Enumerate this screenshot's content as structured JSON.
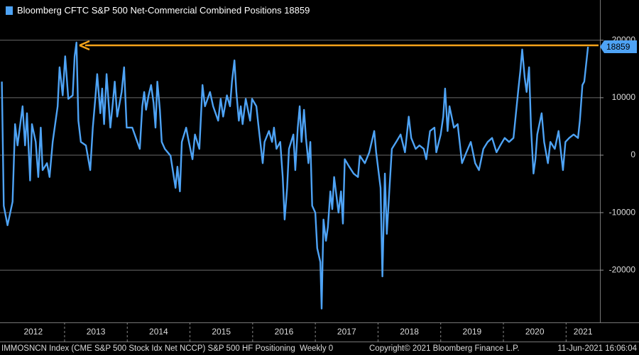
{
  "chart_data": {
    "type": "line",
    "ylim": [
      -29100,
      27000
    ],
    "yticks": [
      20000,
      10000,
      0,
      -10000,
      -20000
    ],
    "grid": true,
    "xlim": [
      2011.97,
      2021.54
    ],
    "xticks": [
      2012,
      2013,
      2014,
      2015,
      2016,
      2017,
      2018,
      2019,
      2020,
      2021
    ],
    "background": "#000000",
    "series": [
      {
        "name": "Bloomberg CFTC S&P 500 Net-Commercial Combined Positions",
        "color": "#4ea3f5",
        "x": [
          2012.0,
          2012.03,
          2012.09,
          2012.17,
          2012.21,
          2012.25,
          2012.33,
          2012.37,
          2012.4,
          2012.45,
          2012.48,
          2012.54,
          2012.58,
          2012.62,
          2012.65,
          2012.72,
          2012.76,
          2012.81,
          2012.89,
          2012.92,
          2012.97,
          2013.01,
          2013.06,
          2013.13,
          2013.16,
          2013.19,
          2013.22,
          2013.26,
          2013.34,
          2013.41,
          2013.45,
          2013.49,
          2013.52,
          2013.57,
          2013.6,
          2013.63,
          2013.67,
          2013.73,
          2013.77,
          2013.8,
          2013.84,
          2013.91,
          2013.95,
          2013.99,
          2014.08,
          2014.16,
          2014.2,
          2014.24,
          2014.27,
          2014.3,
          2014.34,
          2014.38,
          2014.42,
          2014.45,
          2014.48,
          2014.52,
          2014.55,
          2014.6,
          2014.69,
          2014.77,
          2014.8,
          2014.84,
          2014.87,
          2014.94,
          2014.97,
          2015.04,
          2015.08,
          2015.15,
          2015.2,
          2015.24,
          2015.32,
          2015.37,
          2015.45,
          2015.49,
          2015.53,
          2015.59,
          2015.64,
          2015.67,
          2015.71,
          2015.74,
          2015.78,
          2015.81,
          2015.84,
          2015.89,
          2015.96,
          2015.99,
          2016.06,
          2016.09,
          2016.16,
          2016.19,
          2016.26,
          2016.31,
          2016.34,
          2016.38,
          2016.44,
          2016.48,
          2016.51,
          2016.55,
          2016.58,
          2016.65,
          2016.68,
          2016.72,
          2016.75,
          2016.78,
          2016.82,
          2016.85,
          2016.89,
          2016.92,
          2016.95,
          2017.0,
          2017.03,
          2017.08,
          2017.1,
          2017.13,
          2017.17,
          2017.2,
          2017.24,
          2017.27,
          2017.3,
          2017.37,
          2017.41,
          2017.44,
          2017.47,
          2017.54,
          2017.61,
          2017.68,
          2017.71,
          2017.79,
          2017.86,
          2017.94,
          2017.97,
          2018.04,
          2018.07,
          2018.11,
          2018.14,
          2018.18,
          2018.22,
          2018.29,
          2018.36,
          2018.43,
          2018.49,
          2018.53,
          2018.6,
          2018.66,
          2018.73,
          2018.77,
          2018.83,
          2018.9,
          2018.93,
          2019.0,
          2019.04,
          2019.07,
          2019.11,
          2019.14,
          2019.21,
          2019.27,
          2019.34,
          2019.41,
          2019.48,
          2019.55,
          2019.61,
          2019.68,
          2019.75,
          2019.82,
          2019.89,
          2019.95,
          2020.02,
          2020.09,
          2020.16,
          2020.2,
          2020.24,
          2020.27,
          2020.3,
          2020.34,
          2020.37,
          2020.41,
          2020.44,
          2020.48,
          2020.51,
          2020.54,
          2020.61,
          2020.65,
          2020.71,
          2020.75,
          2020.82,
          2020.88,
          2020.95,
          2020.99,
          2021.05,
          2021.12,
          2021.19,
          2021.22,
          2021.26,
          2021.29,
          2021.35
        ],
        "values": [
          12800,
          -8800,
          -12200,
          -8100,
          5400,
          1700,
          8500,
          1700,
          7300,
          -4400,
          5400,
          2300,
          -3800,
          4800,
          -2600,
          -1400,
          -3800,
          2300,
          8500,
          15300,
          10400,
          17200,
          9800,
          10400,
          17200,
          19600,
          6000,
          2300,
          1700,
          -2600,
          4800,
          9800,
          14100,
          7300,
          11600,
          5400,
          14100,
          4800,
          9100,
          12800,
          6700,
          11000,
          15300,
          4800,
          4800,
          2300,
          1100,
          8500,
          11000,
          7900,
          10400,
          12200,
          9100,
          4800,
          12800,
          7900,
          2300,
          1100,
          -100,
          -5700,
          -2000,
          -6300,
          2300,
          4800,
          3000,
          -700,
          3600,
          1100,
          12200,
          8500,
          11000,
          8500,
          6000,
          9800,
          6700,
          10400,
          8500,
          12800,
          16500,
          11000,
          6000,
          8500,
          5400,
          9800,
          6000,
          9800,
          8500,
          5400,
          -1400,
          2300,
          4200,
          2300,
          4800,
          1100,
          2300,
          -3800,
          -11200,
          -5700,
          1100,
          3600,
          -2600,
          4800,
          8500,
          2300,
          7900,
          3000,
          -1400,
          2300,
          -8800,
          -10000,
          -16200,
          -18600,
          -26700,
          -11200,
          -14900,
          -12500,
          -6300,
          -9400,
          -3800,
          -10000,
          -6300,
          -11900,
          -700,
          -2000,
          -3200,
          -3800,
          -100,
          -1400,
          500,
          4200,
          500,
          -5700,
          -21100,
          -3200,
          -13700,
          -6300,
          1100,
          2300,
          3600,
          500,
          6700,
          3000,
          1100,
          1700,
          1100,
          -700,
          4200,
          4800,
          500,
          3600,
          6700,
          11600,
          4200,
          8500,
          4800,
          5400,
          -1400,
          500,
          2300,
          -1400,
          -2600,
          1100,
          2300,
          3000,
          500,
          1700,
          3000,
          2300,
          3000,
          7300,
          11600,
          14700,
          18400,
          13500,
          11000,
          15300,
          4800,
          -3200,
          -700,
          3600,
          7300,
          2300,
          -1400,
          2300,
          1100,
          4200,
          -2600,
          2300,
          3000,
          3600,
          3000,
          6000,
          12200,
          12800,
          18859
        ]
      }
    ],
    "annotation_color": "#f5a31a",
    "footer_left": "IMMOSNCN Index (CME S&P 500 Stock Idx Net NCCP) S&P 500 HF Positioning  Weekly 0",
    "footer_center": "Copyright© 2021 Bloomberg Finance L.P.",
    "footer_right": "11-Jun-2021 16:06:04"
  }
}
